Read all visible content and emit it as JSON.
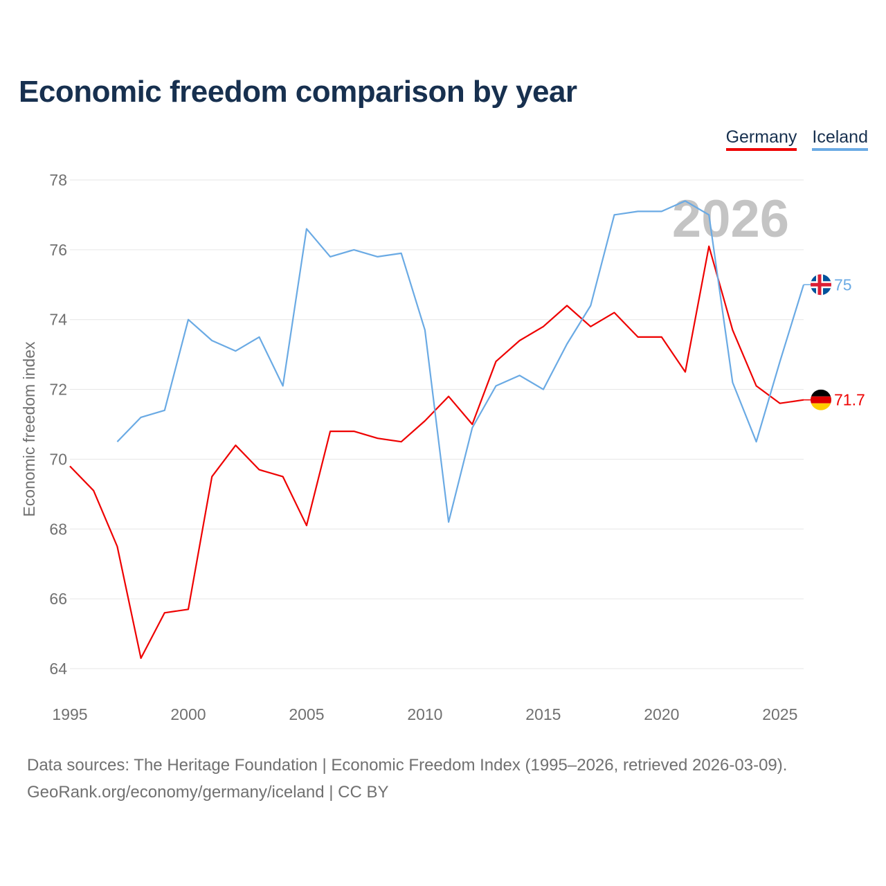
{
  "title": "Economic freedom comparison by year",
  "legend": {
    "germany": "Germany",
    "iceland": "Iceland"
  },
  "watermark_year": "2026",
  "footer": {
    "line1": "Data sources: The Heritage Foundation | Economic Freedom Index (1995–2026, retrieved 2026-03-09).",
    "line2": "GeoRank.org/economy/germany/iceland | CC BY"
  },
  "colors": {
    "germany": "#ee0000",
    "iceland": "#6aaae4",
    "title": "#17304f",
    "axis_text": "#707070",
    "grid": "#e6e6e6",
    "watermark": "#c4c4c4"
  },
  "chart_data": {
    "type": "line",
    "title": "Economic freedom comparison by year",
    "xlabel": "",
    "ylabel": "Economic freedom index",
    "xlim": [
      1995,
      2026
    ],
    "ylim": [
      63.5,
      78.5
    ],
    "xticks": [
      1995,
      2000,
      2005,
      2010,
      2015,
      2020,
      2025
    ],
    "yticks": [
      64,
      66,
      68,
      70,
      72,
      74,
      76,
      78
    ],
    "grid": true,
    "legend_position": "top-right",
    "series": [
      {
        "name": "Germany",
        "color": "#ee0000",
        "end_label": "71.7",
        "x": [
          1995,
          1996,
          1997,
          1998,
          1999,
          2000,
          2001,
          2002,
          2003,
          2004,
          2005,
          2006,
          2007,
          2008,
          2009,
          2010,
          2011,
          2012,
          2013,
          2014,
          2015,
          2016,
          2017,
          2018,
          2019,
          2020,
          2021,
          2022,
          2023,
          2024,
          2025,
          2026
        ],
        "y": [
          69.8,
          69.1,
          67.5,
          64.3,
          65.6,
          65.7,
          69.5,
          70.4,
          69.7,
          69.5,
          68.1,
          70.8,
          70.8,
          70.6,
          70.5,
          71.1,
          71.8,
          71.0,
          72.8,
          73.4,
          73.8,
          74.4,
          73.8,
          74.2,
          73.5,
          73.5,
          72.5,
          76.1,
          73.7,
          72.1,
          71.6,
          71.7
        ]
      },
      {
        "name": "Iceland",
        "color": "#6aaae4",
        "end_label": "75",
        "x": [
          1997,
          1998,
          1999,
          2000,
          2001,
          2002,
          2003,
          2004,
          2005,
          2006,
          2007,
          2008,
          2009,
          2010,
          2011,
          2012,
          2013,
          2014,
          2015,
          2016,
          2017,
          2018,
          2019,
          2020,
          2021,
          2022,
          2023,
          2024,
          2025,
          2026
        ],
        "y": [
          70.5,
          71.2,
          71.4,
          74.0,
          73.4,
          73.1,
          73.5,
          72.1,
          76.6,
          75.8,
          76.0,
          75.8,
          75.9,
          73.7,
          68.2,
          70.9,
          72.1,
          72.4,
          72.0,
          73.3,
          74.4,
          77.0,
          77.1,
          77.1,
          77.4,
          77.0,
          72.2,
          70.5,
          72.8,
          75.0
        ]
      }
    ]
  }
}
